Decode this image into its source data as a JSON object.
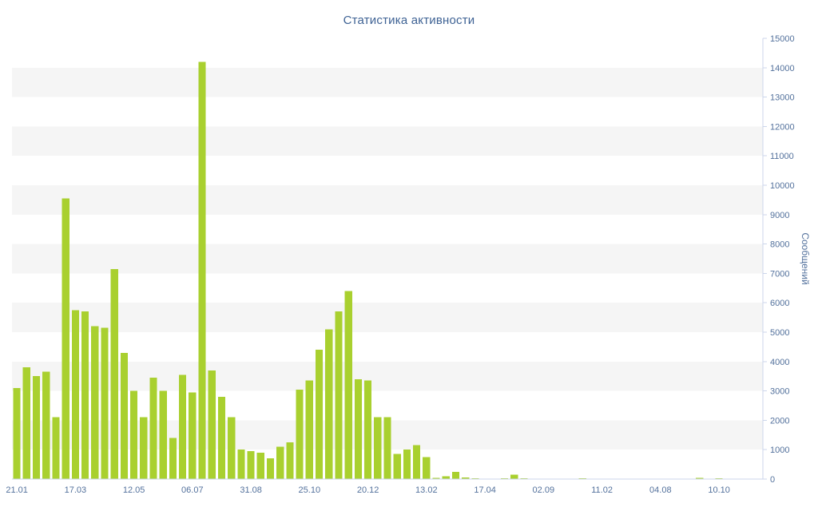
{
  "chart_data": {
    "type": "bar",
    "title": "Статистика активности",
    "ylabel": "Сообщений",
    "xlabel": "",
    "ylim": [
      0,
      15000
    ],
    "y_tick_interval": 1000,
    "y_tick_labels": [
      "0",
      "1000",
      "2000",
      "3000",
      "4000",
      "5000",
      "6000",
      "7000",
      "8000",
      "9000",
      "10000",
      "11000",
      "12000",
      "13000",
      "14000",
      "15000"
    ],
    "x_tick_labels": [
      "21.01",
      "17.03",
      "12.05",
      "06.07",
      "31.08",
      "25.10",
      "20.12",
      "13.02",
      "17.04",
      "02.09",
      "11.02",
      "04.08",
      "10.10"
    ],
    "x_label_every": 6,
    "legend": "none",
    "grid": "alternating-horizontal-bands",
    "values": [
      3100,
      3800,
      3500,
      3650,
      2100,
      9550,
      5750,
      5700,
      5200,
      5150,
      7150,
      4300,
      3000,
      2100,
      3450,
      3000,
      1400,
      3550,
      2950,
      14200,
      3700,
      2800,
      2100,
      1000,
      950,
      900,
      700,
      1100,
      1250,
      3050,
      3350,
      4400,
      5100,
      5700,
      6400,
      3400,
      3350,
      2100,
      2100,
      850,
      1000,
      1150,
      750,
      40,
      100,
      250,
      60,
      30,
      20,
      15,
      25,
      150,
      30,
      20,
      15,
      10,
      15,
      10,
      25,
      15,
      10,
      15,
      10,
      20,
      10,
      15,
      10,
      20,
      10,
      15,
      45,
      15,
      30,
      15,
      10,
      15,
      10
    ],
    "colors": {
      "bar": "#a9d02f",
      "band": "#f5f5f5",
      "axis": "#ccd6eb",
      "tick_text": "#53719c",
      "title_text": "#3e6294",
      "background": "#ffffff"
    }
  }
}
